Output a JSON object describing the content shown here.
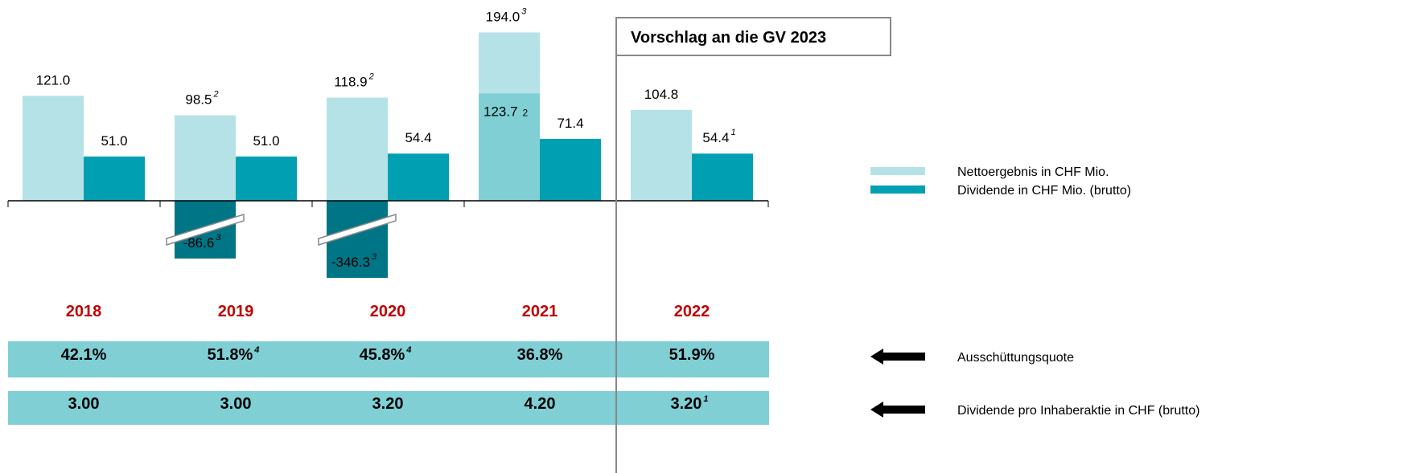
{
  "chart_data": {
    "type": "bar",
    "categories": [
      "2018",
      "2019",
      "2020",
      "2021",
      "2022"
    ],
    "series": [
      {
        "name": "Nettoergebnis in CHF Mio.",
        "color": "#b5e2e7",
        "values": [
          121.0,
          98.5,
          118.9,
          194.0,
          104.8
        ],
        "value_labels": [
          "121.0",
          "98.5",
          "118.9",
          "194.0",
          "104.8"
        ],
        "notes": [
          null,
          "2",
          "2",
          "3",
          null
        ],
        "secondary_values": [
          null,
          -86.6,
          -346.3,
          123.7,
          null
        ],
        "secondary_labels": [
          null,
          "-86.6",
          "-346.3",
          "123.7",
          null
        ],
        "secondary_notes": [
          null,
          "3",
          "3",
          "2",
          null
        ],
        "secondary_colors": [
          null,
          "#007585",
          "#007585",
          "#7fcfd5",
          null
        ]
      },
      {
        "name": "Dividende in CHF Mio. (brutto)",
        "color": "#00a0b2",
        "values": [
          51.0,
          51.0,
          54.4,
          71.4,
          54.4
        ],
        "value_labels": [
          "51.0",
          "51.0",
          "54.4",
          "71.4",
          "54.4"
        ],
        "notes": [
          null,
          null,
          null,
          null,
          "1"
        ]
      }
    ],
    "annotation": "Vorschlag an die GV 2023",
    "rows": [
      {
        "label": "Ausschüttungsquote",
        "cells": [
          "42.1%",
          "51.8%",
          "45.8%",
          "36.8%",
          "51.9%"
        ],
        "notes": [
          null,
          "4",
          "4",
          null,
          null
        ]
      },
      {
        "label": "Dividende pro Inhaberaktie in CHF (brutto)",
        "cells": [
          "3.00",
          "3.00",
          "3.20",
          "4.20",
          "3.20"
        ],
        "notes": [
          null,
          null,
          null,
          null,
          "1"
        ]
      }
    ]
  }
}
